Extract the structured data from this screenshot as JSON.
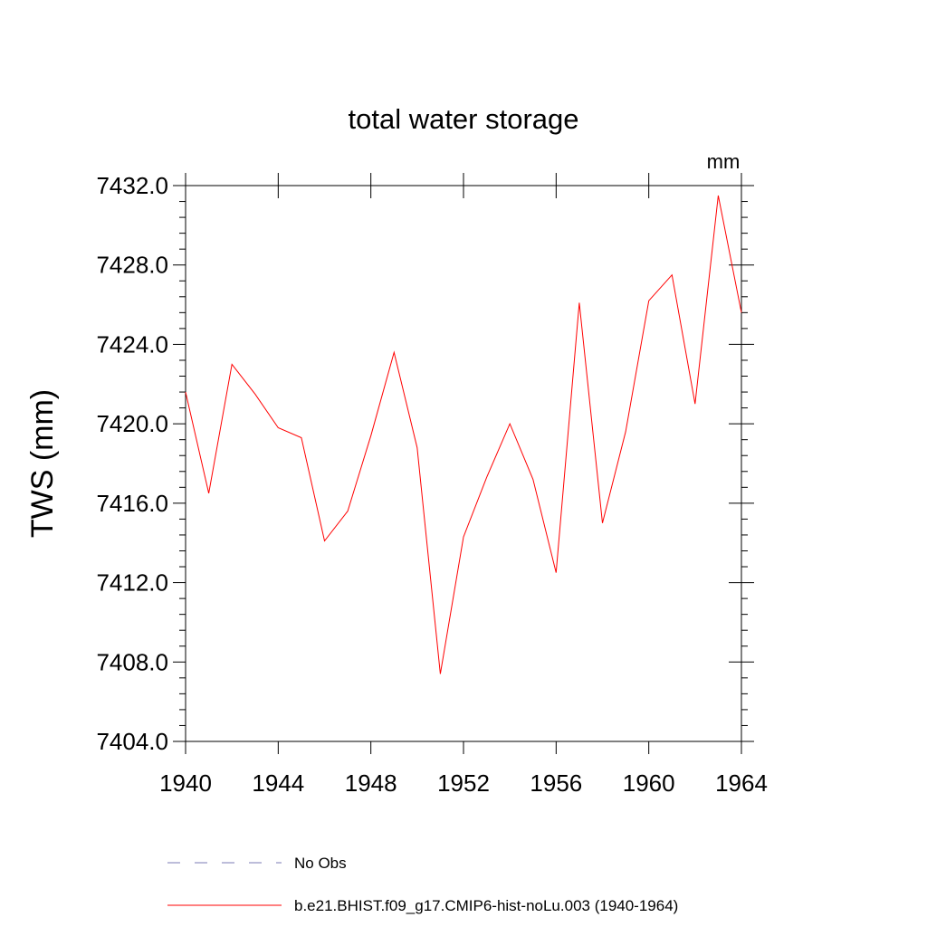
{
  "chart_data": {
    "type": "line",
    "title": "total water storage",
    "units_label": "mm",
    "ylabel": "TWS  (mm)",
    "xlabel": "",
    "xlim": [
      1940,
      1964
    ],
    "ylim": [
      7404.0,
      7432.0
    ],
    "x_ticks": [
      "1940",
      "1944",
      "1948",
      "1952",
      "1956",
      "1960",
      "1964"
    ],
    "x_tick_values": [
      1940,
      1944,
      1948,
      1952,
      1956,
      1960,
      1964
    ],
    "y_ticks": [
      "7404.0",
      "7408.0",
      "7412.0",
      "7416.0",
      "7420.0",
      "7424.0",
      "7428.0",
      "7432.0"
    ],
    "y_tick_values": [
      7404,
      7408,
      7412,
      7416,
      7420,
      7424,
      7428,
      7432
    ],
    "grid": false,
    "legend_position": "bottom",
    "series": [
      {
        "name": "b.e21.BHIST.f09_g17.CMIP6-hist-noLu.003 (1940-1964)",
        "color": "#ff0000",
        "style": "solid",
        "x": [
          1940,
          1941,
          1942,
          1943,
          1944,
          1945,
          1946,
          1947,
          1948,
          1949,
          1950,
          1951,
          1952,
          1953,
          1954,
          1955,
          1956,
          1957,
          1958,
          1959,
          1960,
          1961,
          1962,
          1963,
          1964
        ],
        "values": [
          7421.6,
          7416.5,
          7423.0,
          7421.5,
          7419.8,
          7419.3,
          7414.1,
          7415.6,
          7419.4,
          7423.6,
          7418.8,
          7407.4,
          7414.3,
          7417.3,
          7420.0,
          7417.2,
          7412.5,
          7426.1,
          7415.0,
          7419.6,
          7426.2,
          7427.5,
          7421.0,
          7431.5,
          7425.6
        ]
      }
    ],
    "legend": [
      {
        "label": "No Obs",
        "color": "#7b7bb5",
        "style": "dashed"
      },
      {
        "label": "b.e21.BHIST.f09_g17.CMIP6-hist-noLu.003 (1940-1964)",
        "color": "#ff0000",
        "style": "solid"
      }
    ]
  }
}
